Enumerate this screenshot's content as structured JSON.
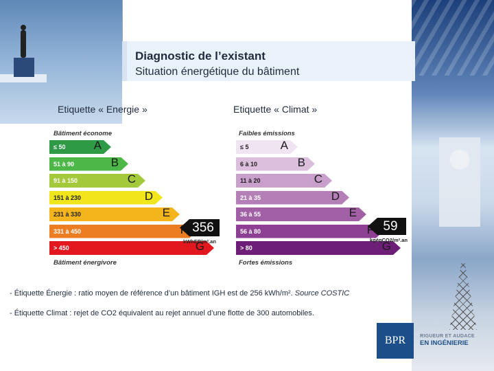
{
  "title": {
    "line1": "Diagnostic de l’existant",
    "line2": "Situation énergétique du bâtiment"
  },
  "energy": {
    "heading": "Etiquette « Energie »",
    "top_label": "Bâtiment économe",
    "bottom_label": "Bâtiment énergivore",
    "value": "356",
    "unit": "kWhEP/m².an",
    "bars": [
      {
        "range": "≤ 50",
        "letter": "A",
        "color": "#2e9a46"
      },
      {
        "range": "51 à 90",
        "letter": "B",
        "color": "#4db848"
      },
      {
        "range": "91 à 150",
        "letter": "C",
        "color": "#a4c93b"
      },
      {
        "range": "151 à 230",
        "letter": "D",
        "color": "#f1e51b"
      },
      {
        "range": "231 à 330",
        "letter": "E",
        "color": "#f3b41c"
      },
      {
        "range": "331 à 450",
        "letter": "F",
        "color": "#ec7d22"
      },
      {
        "range": "> 450",
        "letter": "G",
        "color": "#e3171e"
      }
    ]
  },
  "climate": {
    "heading": "Etiquette « Climat »",
    "top_label": "Faibles émissions",
    "bottom_label": "Fortes émissions",
    "value": "59",
    "unit": "kgéqCO2/m².an",
    "bars": [
      {
        "range": "≤ 5",
        "letter": "A",
        "color": "#f1e4f2"
      },
      {
        "range": "6 à 10",
        "letter": "B",
        "color": "#dcbfdc"
      },
      {
        "range": "11 à 20",
        "letter": "C",
        "color": "#c99fcb"
      },
      {
        "range": "21 à 35",
        "letter": "D",
        "color": "#b47fb7"
      },
      {
        "range": "36 à 55",
        "letter": "E",
        "color": "#a160a6"
      },
      {
        "range": "56 à 80",
        "letter": "F",
        "color": "#8c3f93"
      },
      {
        "range": "> 80",
        "letter": "G",
        "color": "#6d1f78"
      }
    ]
  },
  "notes": {
    "line1_prefix": "- Étiquette Énergie : ratio moyen de référence d’un bâtiment IGH est de 256 kWh/m². ",
    "line1_source": "Source COSTIC",
    "line2": "- Étiquette Climat :  rejet de CO2 équivalent au rejet annuel d’une flotte de 300 automobiles."
  },
  "logo": {
    "mark": "BPR",
    "tagline": "RIGUEUR ET AUDACE",
    "name": "EN INGÉNIERIE"
  }
}
